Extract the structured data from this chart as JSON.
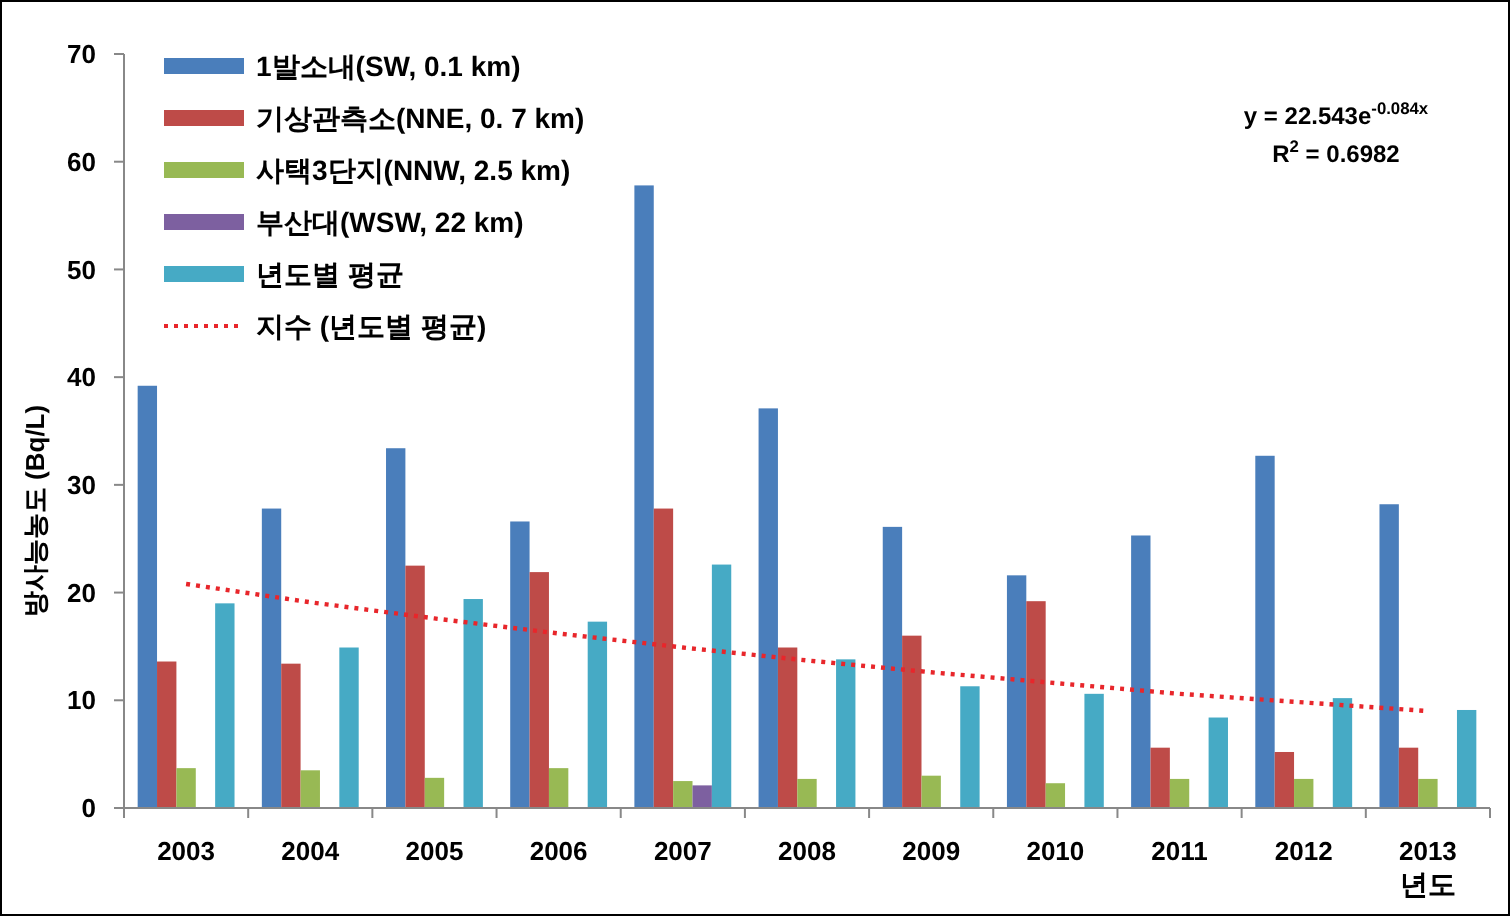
{
  "chart_data": {
    "type": "bar",
    "ylabel": "방사능농도 (Bq/L)",
    "xlabel": "년도",
    "categories": [
      "2003",
      "2004",
      "2005",
      "2006",
      "2007",
      "2008",
      "2009",
      "2010",
      "2011",
      "2012",
      "2013"
    ],
    "series": [
      {
        "name": "1발소내(SW, 0.1 km)",
        "color": "#4a7ebb",
        "values": [
          39.2,
          27.8,
          33.4,
          26.6,
          57.8,
          37.1,
          26.1,
          21.6,
          25.3,
          32.7,
          28.2
        ]
      },
      {
        "name": "기상관측소(NNE, 0. 7 km)",
        "color": "#be4b48",
        "values": [
          13.6,
          13.4,
          22.5,
          21.9,
          27.8,
          14.9,
          16.0,
          19.2,
          5.6,
          5.2,
          5.6
        ]
      },
      {
        "name": "사택3단지(NNW, 2.5 km)",
        "color": "#98b954",
        "values": [
          3.7,
          3.5,
          2.8,
          3.7,
          2.5,
          2.7,
          3.0,
          2.3,
          2.7,
          2.7,
          2.7
        ]
      },
      {
        "name": "부산대(WSW, 22 km)",
        "color": "#7d60a0",
        "values": [
          null,
          null,
          null,
          null,
          2.1,
          null,
          null,
          null,
          null,
          null,
          null
        ]
      },
      {
        "name": "년도별 평균",
        "color": "#46aac5",
        "values": [
          19.0,
          14.9,
          19.4,
          17.3,
          22.6,
          13.8,
          11.3,
          10.6,
          8.4,
          10.2,
          9.1
        ]
      },
      {
        "name": "지수 (년도별 평균)",
        "type": "line",
        "color": "#e8262b",
        "line_style": "dotted",
        "values": [
          20.8,
          19.1,
          17.6,
          16.2,
          14.9,
          13.7,
          12.6,
          11.6,
          10.6,
          9.8,
          9.0
        ]
      }
    ],
    "ylim": [
      0,
      70
    ],
    "yticks": [
      0,
      10,
      20,
      30,
      40,
      50,
      60,
      70
    ],
    "grid": false,
    "legend": "top left",
    "annotations": [
      "y = 22.543e$^{-0.084x}$",
      "R$^{2}$ = 0.6982"
    ]
  }
}
